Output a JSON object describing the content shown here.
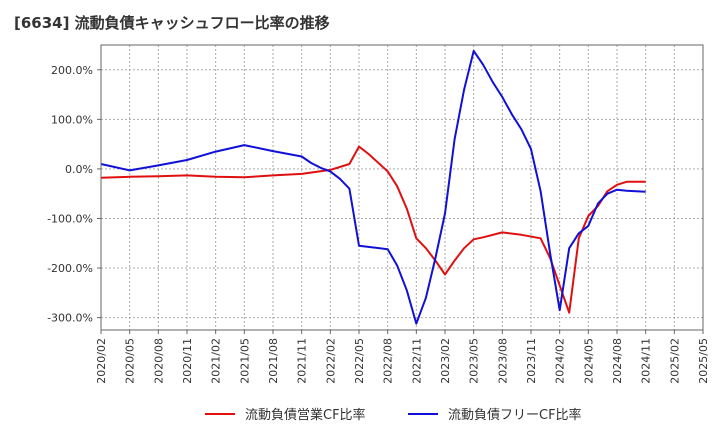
{
  "chart_data": {
    "type": "line",
    "title": "[6634]  流動負債キャッシュフロー比率の推移",
    "xlabel": "",
    "ylabel": "",
    "ylim": [
      -325,
      250
    ],
    "yticks": [
      200,
      100,
      0,
      -100,
      -200,
      -300
    ],
    "ytick_labels": [
      "200.0%",
      "100.0%",
      "0.0%",
      "-100.0%",
      "-200.0%",
      "-300.0%"
    ],
    "xlim": [
      0,
      63
    ],
    "xtick_positions": [
      0,
      3,
      6,
      9,
      12,
      15,
      18,
      21,
      24,
      27,
      30,
      33,
      36,
      39,
      42,
      45,
      48,
      51,
      54,
      57,
      60,
      63
    ],
    "xtick_labels": [
      "2020/02",
      "2020/05",
      "2020/08",
      "2020/11",
      "2021/02",
      "2021/05",
      "2021/08",
      "2021/11",
      "2022/02",
      "2022/05",
      "2022/08",
      "2022/11",
      "2023/02",
      "2023/05",
      "2023/08",
      "2023/11",
      "2024/02",
      "2024/05",
      "2024/08",
      "2024/11",
      "2025/02",
      "2025/05"
    ],
    "grid": true,
    "legend_position": "bottom",
    "series": [
      {
        "name": "流動負債営業CF比率",
        "color": "#e01010",
        "x": [
          0,
          3,
          6,
          9,
          12,
          15,
          18,
          21,
          24,
          26,
          27,
          28,
          30,
          31,
          32,
          33,
          34,
          35,
          36,
          37,
          38,
          39,
          40,
          42,
          44,
          46,
          47,
          48,
          49,
          50,
          51,
          52,
          53,
          54,
          55,
          56,
          57
        ],
        "y": [
          -18,
          -16,
          -15,
          -13,
          -16,
          -17,
          -13,
          -10,
          -2,
          10,
          45,
          30,
          -5,
          -35,
          -80,
          -140,
          -160,
          -185,
          -213,
          -185,
          -160,
          -142,
          -138,
          -128,
          -133,
          -140,
          -180,
          -235,
          -290,
          -140,
          -95,
          -75,
          -45,
          -32,
          -26,
          -26,
          -26
        ]
      },
      {
        "name": "流動負債フリーCF比率",
        "color": "#1010d8",
        "x": [
          0,
          3,
          6,
          9,
          12,
          15,
          18,
          21,
          22,
          23,
          24,
          25,
          26,
          27,
          30,
          31,
          32,
          33,
          34,
          35,
          36,
          37,
          38,
          39,
          40,
          41,
          42,
          43,
          44,
          45,
          46,
          47,
          48,
          49,
          50,
          51,
          52,
          53,
          54,
          55,
          56,
          57
        ],
        "y": [
          10,
          -3,
          7,
          18,
          35,
          48,
          36,
          25,
          12,
          2,
          -5,
          -20,
          -40,
          -155,
          -162,
          -195,
          -245,
          -312,
          -260,
          -180,
          -90,
          60,
          160,
          238,
          210,
          175,
          145,
          110,
          80,
          40,
          -45,
          -170,
          -285,
          -160,
          -130,
          -115,
          -70,
          -50,
          -42,
          -44,
          -45,
          -46
        ]
      }
    ]
  }
}
